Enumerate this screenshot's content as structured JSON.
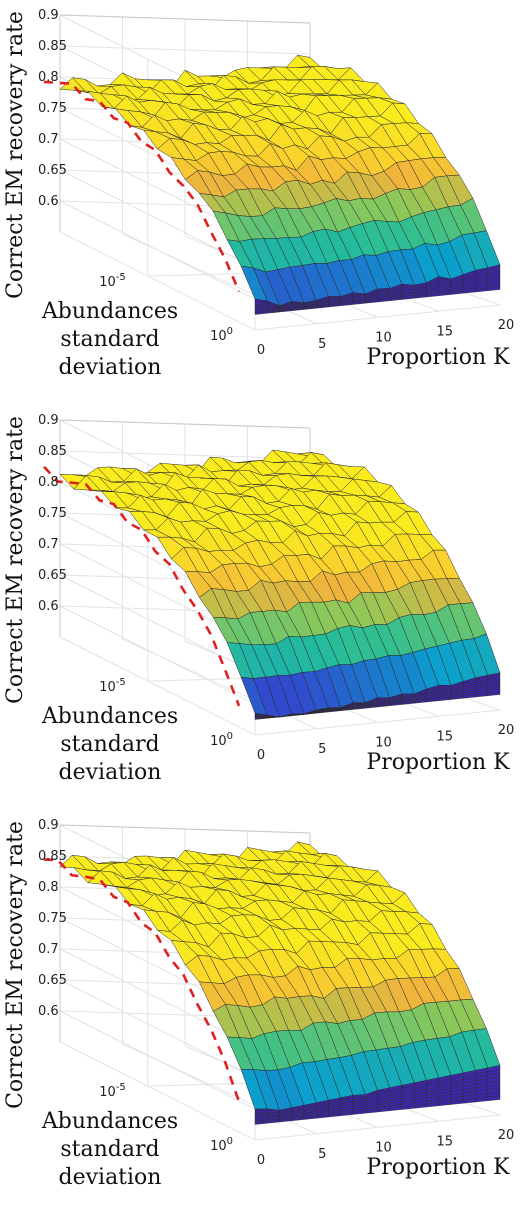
{
  "chart_data": [
    {
      "type": "surface",
      "xlabel": "Proportion K",
      "ylabel": "Abundances standard deviation",
      "zlabel": "Correct EM recovery rate",
      "x": [
        0,
        1,
        2,
        3,
        4,
        5,
        6,
        7,
        8,
        9,
        10,
        11,
        12,
        13,
        14,
        15,
        16,
        17,
        18,
        19,
        20
      ],
      "x_ticks": [
        "0",
        "5",
        "10",
        "15",
        "20"
      ],
      "y_scale": "log",
      "y_ticks": [
        "10^-5",
        "10^0"
      ],
      "z_ticks": [
        "0.6",
        "0.65",
        "0.7",
        "0.75",
        "0.8",
        "0.85",
        "0.9"
      ],
      "zlim": [
        0.55,
        0.9
      ],
      "plateau": [
        0.79,
        0.792,
        0.795,
        0.79,
        0.798,
        0.8,
        0.796,
        0.8,
        0.805,
        0.8,
        0.81,
        0.806,
        0.812,
        0.815,
        0.81,
        0.82,
        0.825,
        0.83,
        0.835,
        0.84,
        0.842
      ],
      "at_max_std": [
        0.6,
        0.595,
        0.585,
        0.59,
        0.586,
        0.588,
        0.592,
        0.59,
        0.594,
        0.59,
        0.596,
        0.595,
        0.6,
        0.596,
        0.598,
        0.606,
        0.6,
        0.605,
        0.61,
        0.612,
        0.615
      ],
      "reference_curve": "red dashed line at K = 0"
    },
    {
      "type": "surface",
      "xlabel": "Proportion K",
      "ylabel": "Abundances standard deviation",
      "zlabel": "Correct EM recovery rate",
      "x": [
        0,
        1,
        2,
        3,
        4,
        5,
        6,
        7,
        8,
        9,
        10,
        11,
        12,
        13,
        14,
        15,
        16,
        17,
        18,
        19,
        20
      ],
      "x_ticks": [
        "0",
        "5",
        "10",
        "15",
        "20"
      ],
      "y_scale": "log",
      "y_ticks": [
        "10^-5",
        "10^0"
      ],
      "z_ticks": [
        "0.6",
        "0.65",
        "0.7",
        "0.75",
        "0.8",
        "0.85",
        "0.9"
      ],
      "zlim": [
        0.55,
        0.9
      ],
      "plateau": [
        0.81,
        0.815,
        0.818,
        0.815,
        0.822,
        0.825,
        0.82,
        0.83,
        0.828,
        0.832,
        0.836,
        0.83,
        0.838,
        0.842,
        0.84,
        0.848,
        0.85,
        0.855,
        0.858,
        0.86,
        0.862
      ],
      "at_max_std": [
        0.585,
        0.58,
        0.575,
        0.578,
        0.576,
        0.58,
        0.582,
        0.58,
        0.586,
        0.584,
        0.59,
        0.588,
        0.592,
        0.59,
        0.596,
        0.6,
        0.598,
        0.602,
        0.606,
        0.608,
        0.61
      ],
      "reference_curve": "red dashed line at K = 0"
    },
    {
      "type": "surface",
      "xlabel": "Proportion K",
      "ylabel": "Abundances standard deviation",
      "zlabel": "Correct EM recovery rate",
      "x": [
        0,
        1,
        2,
        3,
        4,
        5,
        6,
        7,
        8,
        9,
        10,
        11,
        12,
        13,
        14,
        15,
        16,
        17,
        18,
        19,
        20
      ],
      "x_ticks": [
        "0",
        "5",
        "10",
        "15",
        "20"
      ],
      "y_scale": "log",
      "y_ticks": [
        "10^-5",
        "10^0"
      ],
      "z_ticks": [
        "0.6",
        "0.65",
        "0.7",
        "0.75",
        "0.8",
        "0.85",
        "0.9"
      ],
      "zlim": [
        0.55,
        0.9
      ],
      "plateau": [
        0.84,
        0.842,
        0.845,
        0.84,
        0.848,
        0.85,
        0.846,
        0.852,
        0.855,
        0.85,
        0.856,
        0.858,
        0.86,
        0.862,
        0.86,
        0.866,
        0.868,
        0.87,
        0.872,
        0.875,
        0.876
      ],
      "at_max_std": [
        0.6,
        0.598,
        0.594,
        0.596,
        0.598,
        0.6,
        0.602,
        0.604,
        0.606,
        0.605,
        0.61,
        0.612,
        0.614,
        0.616,
        0.618,
        0.62,
        0.622,
        0.624,
        0.626,
        0.628,
        0.63
      ],
      "reference_curve": "red dashed line at K = 0"
    }
  ]
}
